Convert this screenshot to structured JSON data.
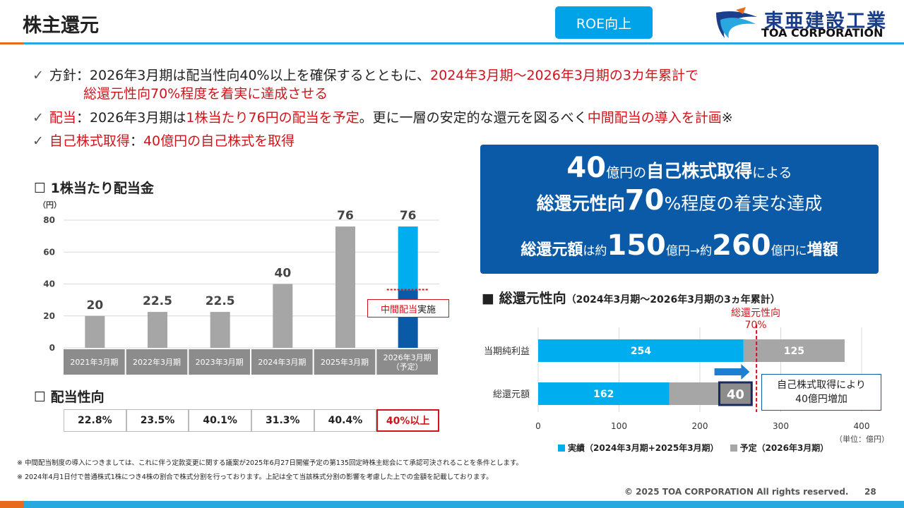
{
  "header": {
    "title": "株主還元",
    "badge": "ROE向上",
    "logo_jp": "東亜建設工業",
    "logo_en": "TOA CORPORATION"
  },
  "bullets": {
    "b1_a": "方針：2026年3月期は配当性向40%以上を確保するとともに、",
    "b1_b": "2024年3月期～2026年3月期の3カ年累計で",
    "b1_c": "総還元性向70%程度を着実に達成させる",
    "b2_a": "配当",
    "b2_b": "：2026年3月期は",
    "b2_c": "1株当たり76円の配当を予定",
    "b2_d": "。更に一層の安定的な還元を図るべく",
    "b2_e": "中間配当の導入を計画",
    "b2_f": "※",
    "b3_a": "自己株式取得",
    "b3_b": "：",
    "b3_c": "40億円の自己株式を取得"
  },
  "bluebox": {
    "l1_big": "40",
    "l1_small": "億円の",
    "l1_mid": "自己株式取得",
    "l1_end": "による",
    "l2_a": "総還元性向",
    "l2_big": "70",
    "l2_b": "%程度",
    "l2_c": "の着実な達成",
    "l3_a": "総還元額",
    "l3_b": "は約",
    "l3_big1": "150",
    "l3_c": "億円→約",
    "l3_big2": "260",
    "l3_d": "億円",
    "l3_e": "に",
    "l3_f": "増額"
  },
  "dividend_section": {
    "title": "1株当たり配当金",
    "unit": "（円）",
    "interim_label_a": "中間配当",
    "interim_label_b": "実施",
    "payout_title": "配当性向"
  },
  "payout_ratios": [
    "22.8%",
    "23.5%",
    "40.1%",
    "31.3%",
    "40.4%",
    "40%以上"
  ],
  "return_section": {
    "title": "総還元性向",
    "subtitle": "（2024年3月期～2026年3月期の3ヵ年累計）",
    "target_label_a": "総還元性向",
    "target_label_b": "70%",
    "callout_a": "自己株式取得により",
    "callout_b": "40億円増加",
    "unit": "（単位：億円）",
    "legend_actual": "実績（2024年3月期+2025年3月期）",
    "legend_plan": "予定（2026年3月期）"
  },
  "chart_data": [
    {
      "type": "bar",
      "categories": [
        "2021年3月期",
        "2022年3月期",
        "2023年3月期",
        "2024年3月期",
        "2025年3月期",
        "2026年3月期\n（予定）"
      ],
      "values": [
        20,
        22.5,
        22.5,
        40,
        76,
        76
      ],
      "value_labels": [
        "20",
        "22.5",
        "22.5",
        "40",
        "76",
        "76"
      ],
      "interim_split": 36,
      "ylim": [
        0,
        80
      ],
      "yticks": [
        0,
        20,
        40,
        60,
        80
      ],
      "colors": {
        "bar": "#a6a6a6",
        "plan_top": "#00aeef",
        "plan_bottom": "#0b5aa8"
      }
    },
    {
      "type": "bar",
      "orientation": "horizontal",
      "stacked": true,
      "categories": [
        "当期純利益",
        "総還元額"
      ],
      "series": [
        {
          "name": "実績（2024年3月期+2025年3月期）",
          "values": [
            254,
            162
          ],
          "color": "#00aeef"
        },
        {
          "name": "予定（2026年3月期）",
          "values": [
            125,
            100
          ],
          "color": "#a6a6a6"
        }
      ],
      "highlight": {
        "value": 40,
        "label": "40"
      },
      "target_line": 270,
      "xlim": [
        0,
        400
      ],
      "xticks": [
        0,
        100,
        200,
        300,
        400
      ]
    }
  ],
  "notes": {
    "n1": "※ 中間配当制度の導入につきましては、これに伴う定款変更に関する議案が2025年6月27日開催予定の第135回定時株主総会にて承認可決されることを条件とします。",
    "n2": "※ 2024年4月1日付で普通株式1株につき4株の割合で株式分割を行っております。上記は全て当該株式分割の影響を考慮した上での金額を記載しております。"
  },
  "footer": {
    "copyright": "© 2025 TOA CORPORATION  All rights reserved.",
    "page": "28"
  }
}
